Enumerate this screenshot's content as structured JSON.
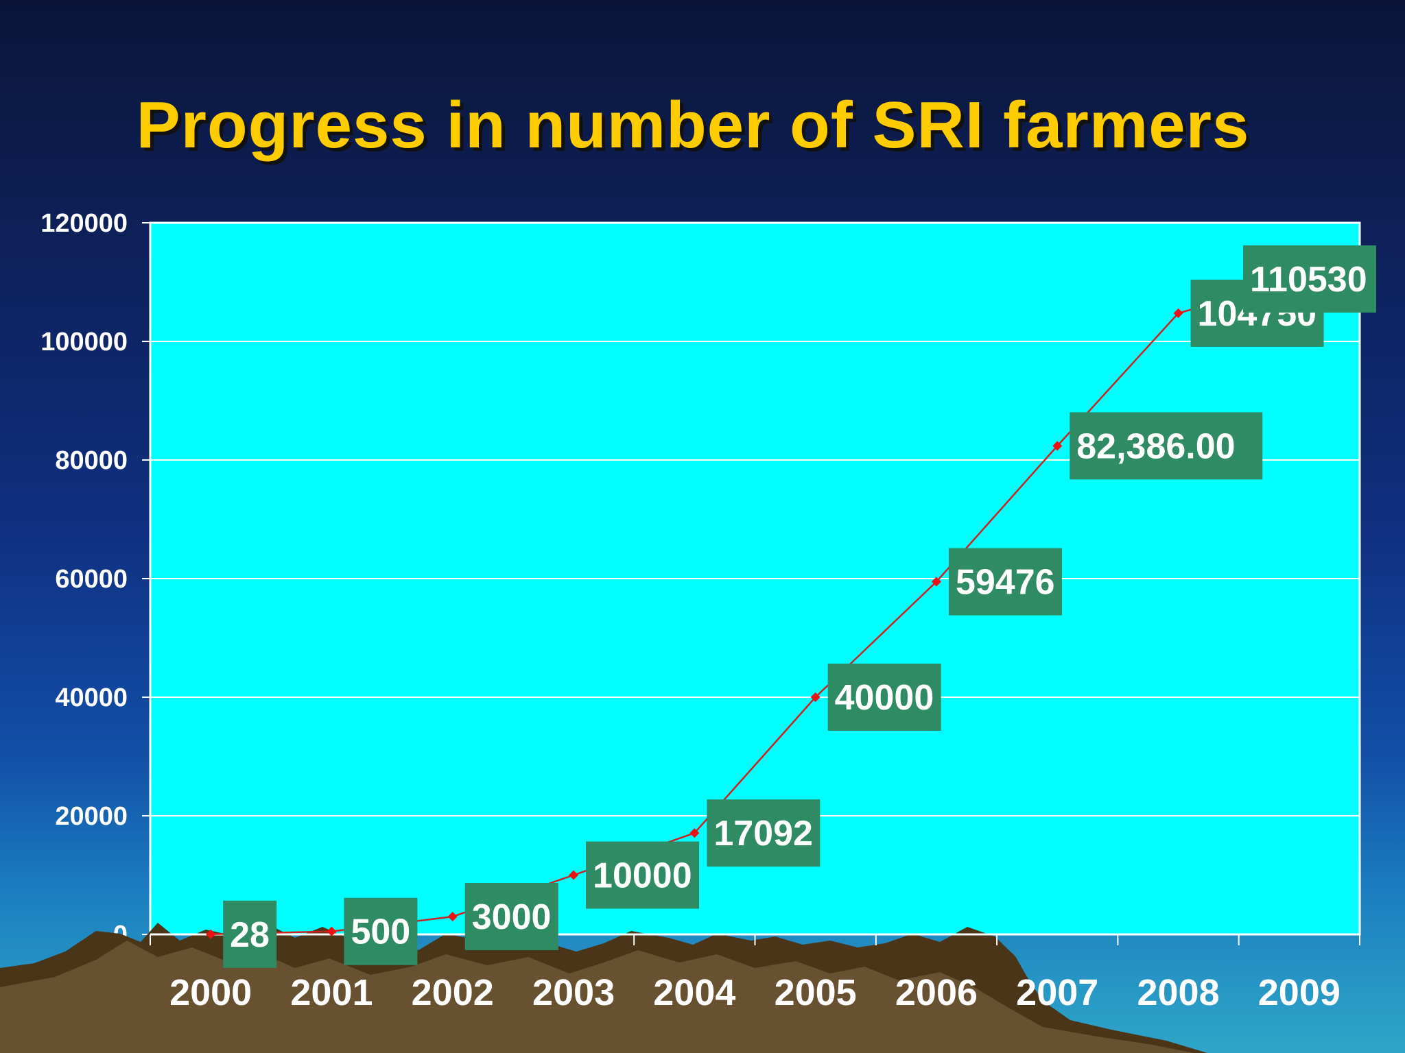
{
  "title": "Progress in number of SRI farmers",
  "colors": {
    "plot_background": "#00ffff",
    "line": "#cc2222",
    "marker": "#ee1111",
    "label_box": "#2e8b64",
    "title": "#ffcc00",
    "axis_text": "#ffffff"
  },
  "chart_data": {
    "type": "line",
    "title": "Progress in number of SRI farmers",
    "xlabel": "",
    "ylabel": "",
    "categories": [
      "2000",
      "2001",
      "2002",
      "2003",
      "2004",
      "2005",
      "2006",
      "2007",
      "2008",
      "2009"
    ],
    "series": [
      {
        "values": [
          28,
          500,
          3000,
          10000,
          17092,
          40000,
          59476,
          82386,
          104750,
          110530
        ],
        "data_labels": [
          "28",
          "500",
          "3000",
          "10000",
          "17092",
          "40000",
          "59476",
          "82,386.00",
          "104750",
          "110530"
        ]
      }
    ],
    "ylim": [
      0,
      120000
    ],
    "yticks": [
      "0",
      "20000",
      "40000",
      "60000",
      "80000",
      "100000",
      "120000"
    ],
    "grid": true,
    "legend": "none"
  }
}
